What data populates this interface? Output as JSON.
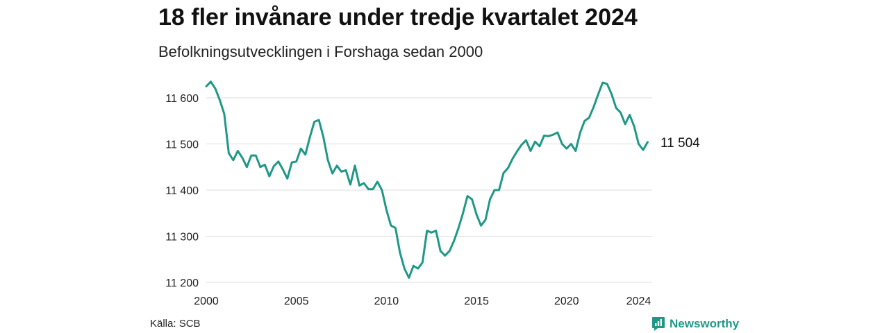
{
  "title": "18 fler invånare under tredje kvartalet 2024",
  "subtitle": "Befolkningsutvecklingen i Forshaga sedan 2000",
  "source": "Källa: SCB",
  "brand": {
    "name": "Newsworthy",
    "icon": "newsworthy-logo-icon"
  },
  "colors": {
    "line": "#1f9886",
    "grid": "#dddddd",
    "text": "#222222"
  },
  "chart_data": {
    "type": "line",
    "title": "18 fler invånare under tredje kvartalet 2024",
    "subtitle": "Befolkningsutvecklingen i Forshaga sedan 2000",
    "xlabel": "",
    "ylabel": "",
    "x_ticks": [
      2000,
      2005,
      2010,
      2015,
      2020,
      2024
    ],
    "y_ticks": [
      11200,
      11300,
      11400,
      11500,
      11600
    ],
    "y_tick_labels": [
      "11 200",
      "11 300",
      "11 400",
      "11 500",
      "11 600"
    ],
    "xlim": [
      2000,
      2024.75
    ],
    "ylim": [
      11200,
      11670
    ],
    "grid": true,
    "end_label": "11 504",
    "series": [
      {
        "x": [
          2000,
          2000.25,
          2000.5,
          2000.75,
          2001,
          2001.25,
          2001.5,
          2001.75,
          2002,
          2002.25,
          2002.5,
          2002.75,
          2003,
          2003.25,
          2003.5,
          2003.75,
          2004,
          2004.25,
          2004.5,
          2004.75,
          2005,
          2005.25,
          2005.5,
          2005.75,
          2006,
          2006.25,
          2006.5,
          2006.75,
          2007,
          2007.25,
          2007.5,
          2007.75,
          2008,
          2008.25,
          2008.5,
          2008.75,
          2009,
          2009.25,
          2009.5,
          2009.75,
          2010,
          2010.25,
          2010.5,
          2010.75,
          2011,
          2011.25,
          2011.5,
          2011.75,
          2012,
          2012.25,
          2012.5,
          2012.75,
          2013,
          2013.25,
          2013.5,
          2013.75,
          2014,
          2014.25,
          2014.5,
          2014.75,
          2015,
          2015.25,
          2015.5,
          2015.75,
          2016,
          2016.25,
          2016.5,
          2016.75,
          2017,
          2017.25,
          2017.5,
          2017.75,
          2018,
          2018.25,
          2018.5,
          2018.75,
          2019,
          2019.25,
          2019.5,
          2019.75,
          2020,
          2020.25,
          2020.5,
          2020.75,
          2021,
          2021.25,
          2021.5,
          2021.75,
          2022,
          2022.25,
          2022.5,
          2022.75,
          2023,
          2023.25,
          2023.5,
          2023.75,
          2024,
          2024.25,
          2024.5
        ],
        "values": [
          11625,
          11635,
          11620,
          11595,
          11565,
          11480,
          11465,
          11485,
          11470,
          11450,
          11475,
          11475,
          11450,
          11455,
          11430,
          11452,
          11462,
          11445,
          11425,
          11460,
          11462,
          11490,
          11477,
          11515,
          11548,
          11552,
          11515,
          11465,
          11436,
          11453,
          11440,
          11443,
          11412,
          11453,
          11410,
          11415,
          11402,
          11402,
          11418,
          11400,
          11357,
          11323,
          11318,
          11265,
          11230,
          11210,
          11236,
          11230,
          11243,
          11312,
          11308,
          11312,
          11268,
          11258,
          11268,
          11290,
          11318,
          11350,
          11387,
          11380,
          11347,
          11323,
          11336,
          11380,
          11400,
          11400,
          11437,
          11448,
          11468,
          11484,
          11498,
          11508,
          11485,
          11505,
          11495,
          11518,
          11517,
          11520,
          11525,
          11500,
          11490,
          11500,
          11485,
          11524,
          11550,
          11557,
          11580,
          11607,
          11633,
          11630,
          11608,
          11578,
          11568,
          11543,
          11563,
          11538,
          11500,
          11487,
          11504
        ]
      }
    ]
  }
}
